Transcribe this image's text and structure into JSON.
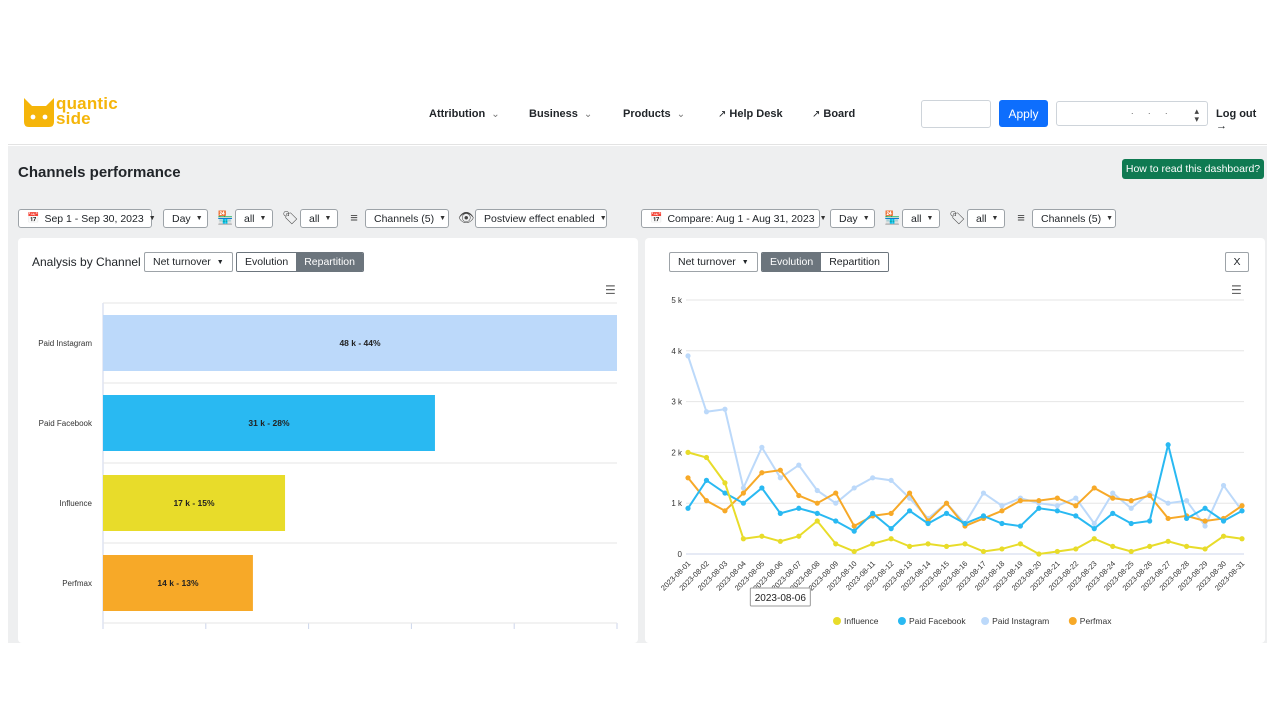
{
  "header": {
    "logo_text_line1": "quantic",
    "logo_text_line2": "side",
    "nav": [
      {
        "label": "Attribution",
        "has_dropdown": true
      },
      {
        "label": "Business",
        "has_dropdown": true
      },
      {
        "label": "Products",
        "has_dropdown": true
      },
      {
        "label": "Help Desk",
        "external": true
      },
      {
        "label": "Board",
        "external": true
      }
    ],
    "apply_label": "Apply",
    "logout_label": "Log out"
  },
  "page": {
    "title": "Channels performance",
    "help_button": "How to read this dashboard?"
  },
  "filters_left": {
    "date_range": "Sep 1 - Sep 30, 2023",
    "granularity": "Day",
    "store": "all",
    "tag": "all",
    "channels": "Channels (5)",
    "postview": "Postview effect enabled"
  },
  "filters_right": {
    "date_range": "Compare: Aug 1 - Aug 31, 2023",
    "granularity": "Day",
    "store": "all",
    "tag": "all",
    "channels": "Channels (5)"
  },
  "left_panel": {
    "title": "Analysis by Channel",
    "metric": "Net turnover",
    "tab_evolution": "Evolution",
    "tab_repartition": "Repartition",
    "active_tab": "Repartition"
  },
  "right_panel": {
    "metric": "Net turnover",
    "tab_evolution": "Evolution",
    "tab_repartition": "Repartition",
    "active_tab": "Evolution",
    "close_label": "X"
  },
  "colors": {
    "influence": "#e8dc2a",
    "paid_facebook": "#29b9f2",
    "paid_instagram": "#bcd9fa",
    "perfmax": "#f7a928",
    "apply": "#0d6efd",
    "help": "#0f7a52"
  },
  "chart_data": [
    {
      "type": "bar",
      "orientation": "horizontal",
      "categories": [
        "Paid Instagram",
        "Paid Facebook",
        "Influence",
        "Perfmax"
      ],
      "values": [
        48,
        31,
        17,
        14
      ],
      "labels": [
        "48 k - 44%",
        "31 k - 28%",
        "17 k - 15%",
        "14 k - 13%"
      ],
      "colors": [
        "#bcd9fa",
        "#29b9f2",
        "#e8dc2a",
        "#f7a928"
      ],
      "xlim": [
        0,
        48
      ]
    },
    {
      "type": "line",
      "x": [
        "2023-08-01",
        "2023-08-02",
        "2023-08-03",
        "2023-08-04",
        "2023-08-05",
        "2023-08-06",
        "2023-08-07",
        "2023-08-08",
        "2023-08-09",
        "2023-08-10",
        "2023-08-11",
        "2023-08-12",
        "2023-08-13",
        "2023-08-14",
        "2023-08-15",
        "2023-08-16",
        "2023-08-17",
        "2023-08-18",
        "2023-08-19",
        "2023-08-20",
        "2023-08-21",
        "2023-08-22",
        "2023-08-23",
        "2023-08-24",
        "2023-08-25",
        "2023-08-26",
        "2023-08-27",
        "2023-08-28",
        "2023-08-29",
        "2023-08-30",
        "2023-08-31"
      ],
      "y_ticks": [
        "0",
        "1 k",
        "2 k",
        "3 k",
        "4 k",
        "5 k"
      ],
      "ylim": [
        0,
        5000
      ],
      "tooltip": "2023-08-06",
      "series": [
        {
          "name": "Influence",
          "color": "#e8dc2a",
          "values": [
            2000,
            1900,
            1400,
            300,
            350,
            250,
            350,
            650,
            200,
            50,
            200,
            300,
            150,
            200,
            150,
            200,
            50,
            100,
            200,
            0,
            50,
            100,
            300,
            150,
            50,
            150,
            250,
            150,
            100,
            350,
            300
          ]
        },
        {
          "name": "Paid Facebook",
          "color": "#29b9f2",
          "values": [
            900,
            1450,
            1200,
            1000,
            1300,
            800,
            900,
            800,
            650,
            450,
            800,
            500,
            850,
            600,
            800,
            600,
            750,
            600,
            550,
            900,
            850,
            750,
            500,
            800,
            600,
            650,
            2150,
            700,
            900,
            650,
            850
          ]
        },
        {
          "name": "Paid Instagram",
          "color": "#bcd9fa",
          "values": [
            3900,
            2800,
            2850,
            1300,
            2100,
            1500,
            1750,
            1250,
            1000,
            1300,
            1500,
            1450,
            1100,
            700,
            1000,
            600,
            1200,
            950,
            1100,
            1000,
            950,
            1100,
            600,
            1200,
            900,
            1200,
            1000,
            1050,
            550,
            1350,
            850
          ]
        },
        {
          "name": "Perfmax",
          "color": "#f7a928",
          "values": [
            1500,
            1050,
            850,
            1200,
            1600,
            1650,
            1150,
            1000,
            1200,
            550,
            750,
            800,
            1200,
            650,
            1000,
            550,
            700,
            850,
            1050,
            1050,
            1100,
            950,
            1300,
            1100,
            1050,
            1150,
            700,
            750,
            650,
            700,
            950
          ]
        }
      ]
    }
  ]
}
